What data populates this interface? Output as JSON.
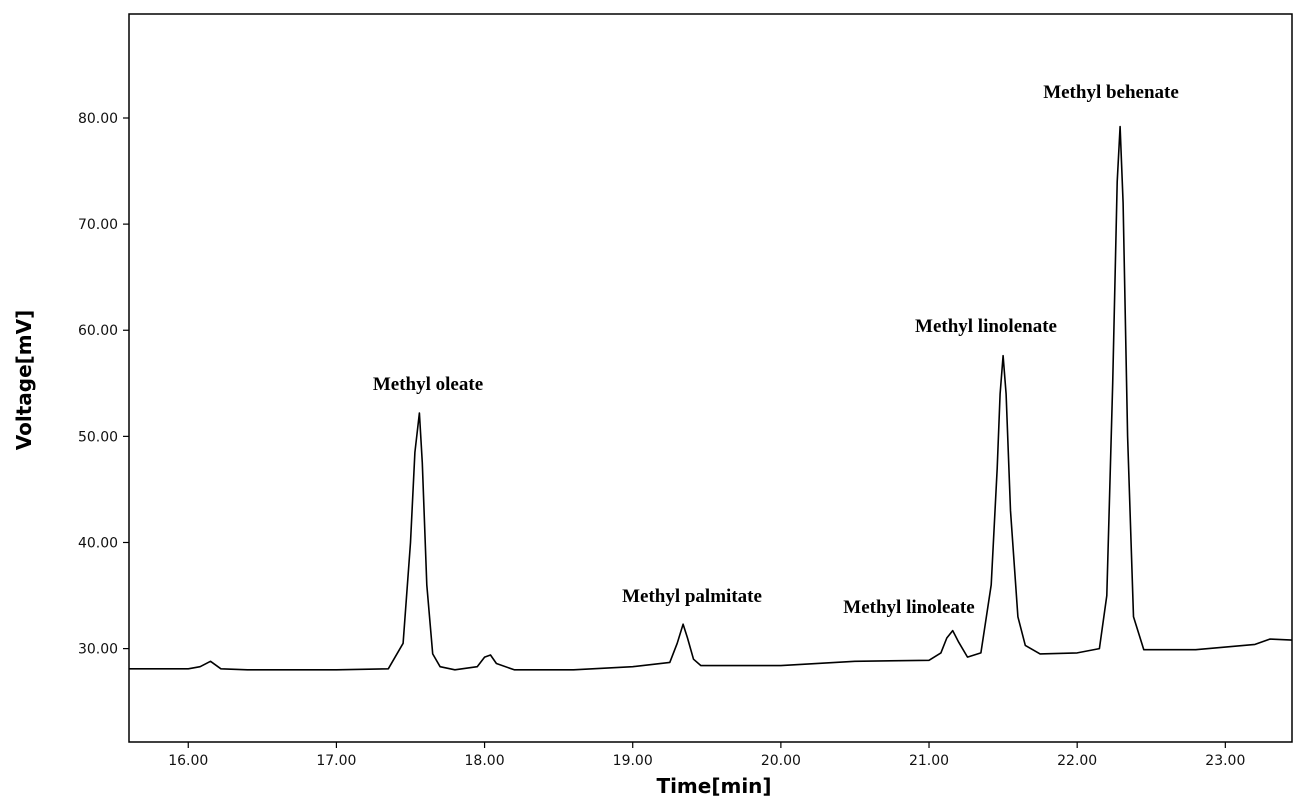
{
  "chart_data": {
    "type": "line",
    "title": "",
    "xlabel": "Time[min]",
    "ylabel": "Voltage[mV]",
    "xlim": [
      15.6,
      23.45
    ],
    "ylim": [
      21.2,
      89.8
    ],
    "grid": false,
    "x_ticks": [
      "16.00",
      "17.00",
      "18.00",
      "19.00",
      "20.00",
      "21.00",
      "22.00",
      "23.00"
    ],
    "y_ticks": [
      "30.00",
      "40.00",
      "50.00",
      "60.00",
      "70.00",
      "80.00"
    ],
    "series": [
      {
        "color": "#000000",
        "x": [
          15.6,
          16.0,
          16.08,
          16.15,
          16.22,
          16.4,
          17.0,
          17.35,
          17.45,
          17.5,
          17.53,
          17.56,
          17.58,
          17.61,
          17.65,
          17.7,
          17.8,
          17.95,
          18.0,
          18.04,
          18.08,
          18.2,
          18.6,
          19.0,
          19.25,
          19.3,
          19.34,
          19.37,
          19.41,
          19.46,
          19.6,
          20.0,
          20.5,
          21.0,
          21.08,
          21.12,
          21.16,
          21.2,
          21.26,
          21.35,
          21.42,
          21.46,
          21.48,
          21.5,
          21.52,
          21.55,
          21.6,
          21.65,
          21.75,
          22.0,
          22.15,
          22.2,
          22.24,
          22.27,
          22.29,
          22.31,
          22.34,
          22.38,
          22.45,
          22.8,
          23.2,
          23.3,
          23.45
        ],
        "y": [
          28.1,
          28.1,
          28.3,
          28.8,
          28.1,
          28.0,
          28.0,
          28.1,
          30.5,
          40.0,
          48.5,
          52.2,
          47.5,
          36.0,
          29.5,
          28.3,
          28.0,
          28.3,
          29.2,
          29.4,
          28.6,
          28.0,
          28.0,
          28.3,
          28.7,
          30.5,
          32.3,
          31.0,
          29.0,
          28.4,
          28.4,
          28.4,
          28.8,
          28.9,
          29.6,
          31.0,
          31.7,
          30.6,
          29.2,
          29.6,
          36.0,
          47.0,
          54.0,
          57.6,
          54.0,
          43.0,
          33.0,
          30.3,
          29.5,
          29.6,
          30.0,
          35.0,
          55.0,
          74.0,
          79.2,
          72.0,
          50.0,
          33.0,
          29.9,
          29.9,
          30.4,
          30.9,
          30.8
        ]
      }
    ],
    "annotations": [
      {
        "text": "Methyl oleate"
      },
      {
        "text": "Methyl palmitate"
      },
      {
        "text": "Methyl linoleate"
      },
      {
        "text": "Methyl linolenate"
      },
      {
        "text": "Methyl behenate"
      }
    ]
  }
}
